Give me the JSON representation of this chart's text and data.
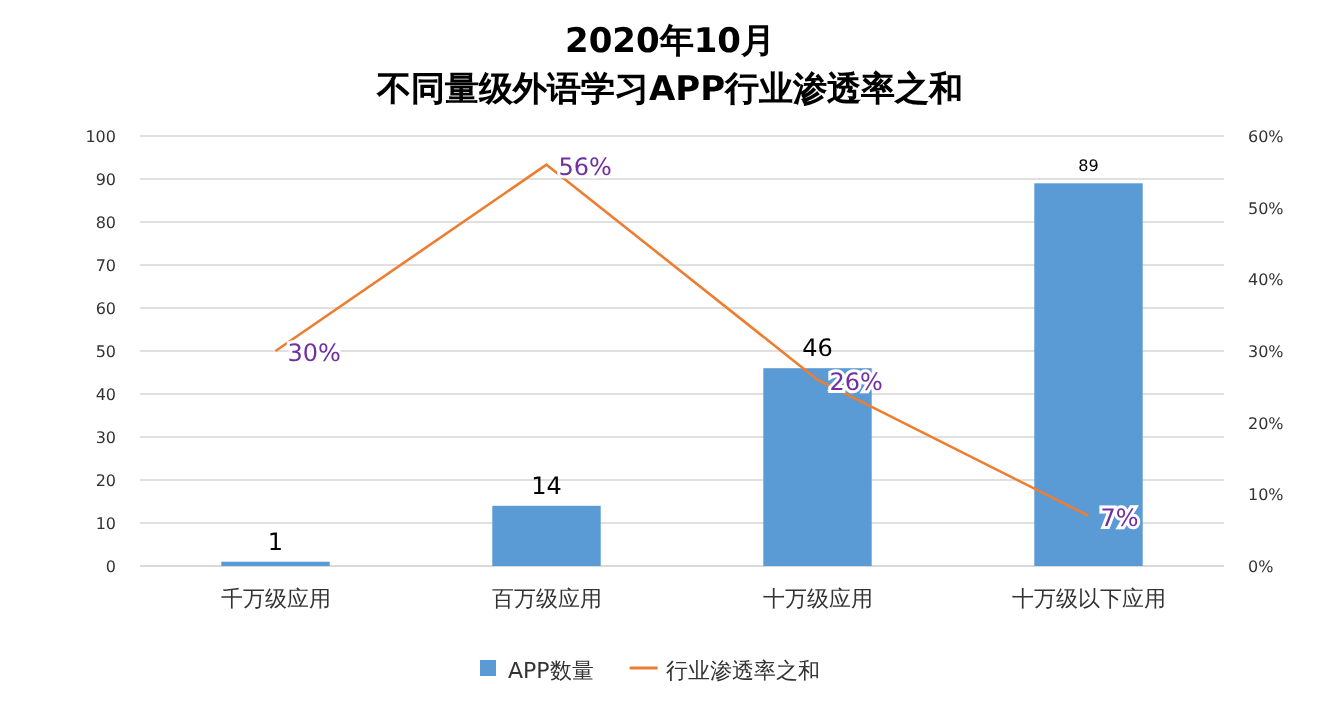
{
  "chart_data": {
    "type": "bar",
    "title": "2020年10月",
    "subtitle": "不同量级外语学习APP行业渗透率之和",
    "categories": [
      "千万级应用",
      "百万级应用",
      "十万级应用",
      "十万级以下应用"
    ],
    "series": [
      {
        "name": "APP数量",
        "color": "#5b9bd5",
        "values": [
          1,
          14,
          46,
          89
        ],
        "data_labels": true
      },
      {
        "name": "行业渗透率之和",
        "type": "line",
        "axis": "y2",
        "color": "#ed7d31",
        "values": [
          30,
          56,
          26,
          7
        ],
        "value_labels": [
          "30%",
          "56%",
          "26%",
          "7%"
        ]
      }
    ],
    "ylim": [
      0,
      100
    ],
    "yticks": [
      0,
      10,
      20,
      30,
      40,
      50,
      60,
      70,
      80,
      90,
      100
    ],
    "y2lim": [
      0,
      60
    ],
    "y2ticks": [
      {
        "value": 0,
        "label": "0%"
      },
      {
        "value": 10,
        "label": "10%"
      },
      {
        "value": 20,
        "label": "20%"
      },
      {
        "value": 30,
        "label": "30%"
      },
      {
        "value": 40,
        "label": "40%"
      },
      {
        "value": 50,
        "label": "50%"
      },
      {
        "value": 60,
        "label": "60%"
      }
    ],
    "grid": "y",
    "legend": "bottom",
    "marker": "none"
  }
}
